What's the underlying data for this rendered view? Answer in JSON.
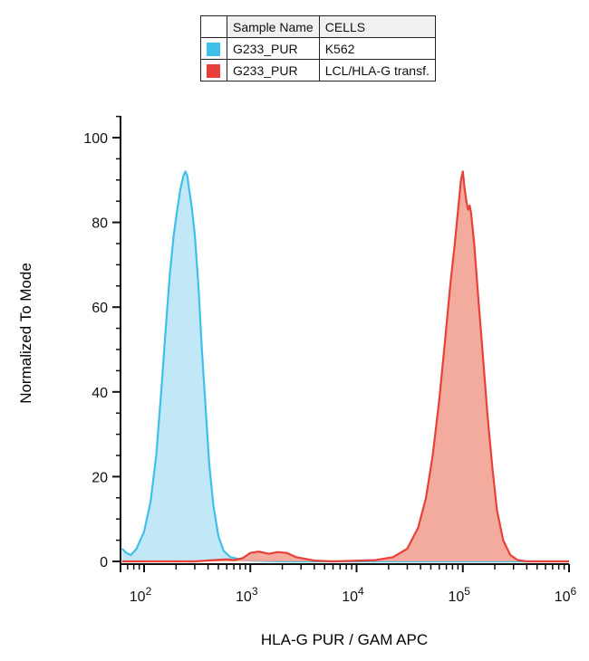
{
  "legend": {
    "header": [
      "Sample Name",
      "CELLS"
    ],
    "rows": [
      {
        "sample": "G233_PUR",
        "cells": "K562",
        "color": "#3ec0ea"
      },
      {
        "sample": "G233_PUR",
        "cells": "LCL/HLA-G transf.",
        "color": "#e8403a"
      }
    ]
  },
  "chart_data": {
    "type": "area",
    "title": "",
    "xlabel": "HLA-G PUR / GAM APC",
    "ylabel": "Normalized To Mode",
    "xscale": "log",
    "xlim": [
      60,
      1000000
    ],
    "ylim": [
      0,
      105
    ],
    "y_ticks": [
      0,
      20,
      40,
      60,
      80,
      100
    ],
    "x_ticks": [
      {
        "value": 100,
        "base": "10",
        "exp": "2"
      },
      {
        "value": 1000,
        "base": "10",
        "exp": "3"
      },
      {
        "value": 10000,
        "base": "10",
        "exp": "4"
      },
      {
        "value": 100000,
        "base": "10",
        "exp": "5"
      },
      {
        "value": 1000000,
        "base": "10",
        "exp": "6"
      }
    ],
    "series": [
      {
        "name": "K562",
        "line_color": "#3ec0ea",
        "fill_color": "#bfe7f7",
        "points": [
          [
            62,
            3
          ],
          [
            68,
            2
          ],
          [
            75,
            1.5
          ],
          [
            85,
            3
          ],
          [
            100,
            7
          ],
          [
            115,
            14
          ],
          [
            130,
            25
          ],
          [
            145,
            40
          ],
          [
            160,
            55
          ],
          [
            175,
            68
          ],
          [
            190,
            77
          ],
          [
            205,
            83
          ],
          [
            220,
            88
          ],
          [
            235,
            91
          ],
          [
            245,
            92
          ],
          [
            255,
            91
          ],
          [
            265,
            88
          ],
          [
            280,
            84
          ],
          [
            300,
            77
          ],
          [
            325,
            65
          ],
          [
            350,
            50
          ],
          [
            380,
            36
          ],
          [
            410,
            23
          ],
          [
            450,
            13
          ],
          [
            500,
            6
          ],
          [
            560,
            2.5
          ],
          [
            650,
            1
          ],
          [
            800,
            0.5
          ],
          [
            1000,
            0.2
          ],
          [
            2000,
            0
          ],
          [
            1000000,
            0
          ]
        ]
      },
      {
        "name": "LCL/HLA-G transf.",
        "line_color": "#e8403a",
        "fill_color": "#f2a294",
        "points": [
          [
            62,
            0
          ],
          [
            300,
            0
          ],
          [
            450,
            0.3
          ],
          [
            600,
            0.5
          ],
          [
            700,
            0.3
          ],
          [
            850,
            0.8
          ],
          [
            1000,
            2
          ],
          [
            1200,
            2.3
          ],
          [
            1500,
            1.8
          ],
          [
            1800,
            2.2
          ],
          [
            2200,
            2
          ],
          [
            2700,
            1
          ],
          [
            3300,
            0.6
          ],
          [
            4000,
            0.2
          ],
          [
            6000,
            0
          ],
          [
            15000,
            0.3
          ],
          [
            22000,
            1
          ],
          [
            30000,
            3
          ],
          [
            38000,
            8
          ],
          [
            45000,
            15
          ],
          [
            52000,
            25
          ],
          [
            60000,
            38
          ],
          [
            68000,
            52
          ],
          [
            76000,
            65
          ],
          [
            84000,
            75
          ],
          [
            91000,
            84
          ],
          [
            96000,
            90
          ],
          [
            100000,
            92
          ],
          [
            104000,
            88
          ],
          [
            108000,
            85
          ],
          [
            112000,
            83
          ],
          [
            116000,
            84
          ],
          [
            120000,
            82
          ],
          [
            128000,
            75
          ],
          [
            140000,
            62
          ],
          [
            155000,
            48
          ],
          [
            170000,
            35
          ],
          [
            190000,
            22
          ],
          [
            210000,
            12
          ],
          [
            240000,
            5
          ],
          [
            280000,
            1.5
          ],
          [
            330000,
            0.3
          ],
          [
            400000,
            0
          ],
          [
            1000000,
            0
          ]
        ]
      }
    ]
  }
}
